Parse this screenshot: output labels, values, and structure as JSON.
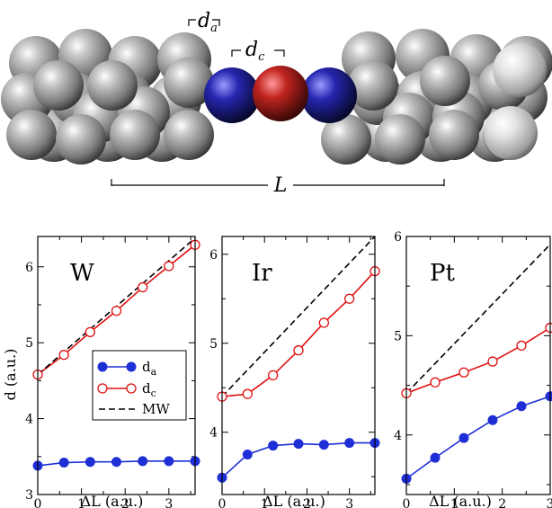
{
  "molecule": {
    "labels": {
      "d_a": "d",
      "d_a_sub": "a",
      "d_c": "d",
      "d_c_sub": "c",
      "L": "L"
    },
    "colors": {
      "metal": "#8f8f8f",
      "nitrogen": "#1a1a8c",
      "oxygen": "#b0201c"
    }
  },
  "legend": {
    "da": {
      "main": "d",
      "sub": "a"
    },
    "dc": {
      "main": "d",
      "sub": "c"
    },
    "mw": "MW"
  },
  "colors": {
    "da": "#1f2fd6",
    "dc": "#e01010",
    "mw": "#000000"
  },
  "chart_data": [
    {
      "type": "line",
      "title": "W",
      "xlabel": "ΔL (a.u.)",
      "ylabel": "d (a.u.)",
      "xlim": [
        0,
        3.6
      ],
      "ylim": [
        3.0,
        6.4
      ],
      "xticks": [
        0,
        1,
        2,
        3
      ],
      "yticks": [
        3,
        4,
        5,
        6
      ],
      "legend_position": "center-right",
      "series": [
        {
          "key": "da",
          "x": [
            0,
            0.6,
            1.2,
            1.8,
            2.4,
            3.0,
            3.6
          ],
          "y": [
            3.38,
            3.42,
            3.43,
            3.43,
            3.44,
            3.44,
            3.44
          ]
        },
        {
          "key": "dc",
          "x": [
            0,
            0.6,
            1.2,
            1.8,
            2.4,
            3.0,
            3.6
          ],
          "y": [
            4.58,
            4.84,
            5.14,
            5.42,
            5.73,
            6.01,
            6.29
          ]
        },
        {
          "key": "mw",
          "x": [
            0,
            3.6
          ],
          "y": [
            4.58,
            6.38
          ]
        }
      ]
    },
    {
      "type": "line",
      "title": "Ir",
      "xlabel": "ΔL (a.u.)",
      "ylabel": "",
      "xlim": [
        0,
        3.6
      ],
      "ylim": [
        3.3,
        6.2
      ],
      "xticks": [
        0,
        1,
        2,
        3
      ],
      "yticks": [
        4,
        5,
        6
      ],
      "series": [
        {
          "key": "da",
          "x": [
            0,
            0.6,
            1.2,
            1.8,
            2.4,
            3.0,
            3.6
          ],
          "y": [
            3.49,
            3.75,
            3.85,
            3.87,
            3.86,
            3.88,
            3.88
          ]
        },
        {
          "key": "dc",
          "x": [
            0,
            0.6,
            1.2,
            1.8,
            2.4,
            3.0,
            3.6
          ],
          "y": [
            4.4,
            4.43,
            4.64,
            4.92,
            5.23,
            5.5,
            5.81
          ]
        },
        {
          "key": "mw",
          "x": [
            0,
            3.6
          ],
          "y": [
            4.4,
            6.2
          ]
        }
      ]
    },
    {
      "type": "line",
      "title": "Pt",
      "xlabel": "ΔL (a.u.)",
      "ylabel": "",
      "xlim": [
        0,
        3.0
      ],
      "ylim": [
        3.4,
        6.0
      ],
      "xticks": [
        0,
        1,
        2,
        3
      ],
      "yticks": [
        4,
        5,
        6
      ],
      "series": [
        {
          "key": "da",
          "x": [
            0,
            0.6,
            1.2,
            1.8,
            2.4,
            3.0
          ],
          "y": [
            3.56,
            3.77,
            3.97,
            4.15,
            4.29,
            4.39
          ]
        },
        {
          "key": "dc",
          "x": [
            0,
            0.6,
            1.2,
            1.8,
            2.4,
            3.0
          ],
          "y": [
            4.42,
            4.53,
            4.63,
            4.74,
            4.9,
            5.08
          ]
        },
        {
          "key": "mw",
          "x": [
            0,
            3.0
          ],
          "y": [
            4.42,
            5.92
          ]
        }
      ]
    }
  ]
}
